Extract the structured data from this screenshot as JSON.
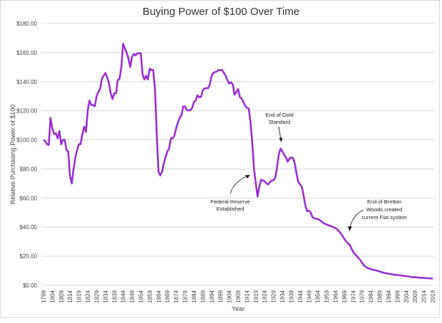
{
  "chart_data": {
    "type": "line",
    "title": "Buying Power of $100 Over Time",
    "xlabel": "Year",
    "ylabel": "Relative Purchasing Power of $100",
    "ylim": [
      0,
      180
    ],
    "xlim": [
      1799,
      2019
    ],
    "grid": "horizontal",
    "line_color": "#9b30d0",
    "y_ticks": [
      "$0.00",
      "$20.00",
      "$40.00",
      "$60.00",
      "$80.00",
      "$100.00",
      "$120.00",
      "$140.00",
      "$160.00",
      "$180.00"
    ],
    "x_ticks": [
      "1799",
      "1804",
      "1809",
      "1814",
      "1819",
      "1824",
      "1829",
      "1834",
      "1839",
      "1844",
      "1849",
      "1854",
      "1859",
      "1864",
      "1869",
      "1874",
      "1879",
      "1884",
      "1889",
      "1894",
      "1899",
      "1904",
      "1909",
      "1914",
      "1919",
      "1924",
      "1929",
      "1934",
      "1939",
      "1944",
      "1949",
      "1954",
      "1959",
      "1964",
      "1969",
      "1974",
      "1979",
      "1984",
      "1989",
      "1994",
      "1999",
      "2004",
      "2009",
      "2014",
      "2019"
    ],
    "x": [
      1799,
      1800,
      1801,
      1802,
      1803,
      1804,
      1805,
      1806,
      1807,
      1808,
      1809,
      1810,
      1811,
      1812,
      1813,
      1814,
      1815,
      1816,
      1817,
      1818,
      1819,
      1820,
      1821,
      1822,
      1823,
      1824,
      1825,
      1826,
      1827,
      1828,
      1829,
      1830,
      1831,
      1832,
      1833,
      1834,
      1835,
      1836,
      1837,
      1838,
      1839,
      1840,
      1841,
      1842,
      1843,
      1844,
      1845,
      1846,
      1847,
      1848,
      1849,
      1850,
      1851,
      1852,
      1853,
      1854,
      1855,
      1856,
      1857,
      1858,
      1859,
      1860,
      1861,
      1862,
      1863,
      1864,
      1865,
      1866,
      1867,
      1868,
      1869,
      1870,
      1871,
      1872,
      1873,
      1874,
      1875,
      1876,
      1877,
      1878,
      1879,
      1880,
      1881,
      1882,
      1883,
      1884,
      1885,
      1886,
      1887,
      1888,
      1889,
      1890,
      1891,
      1892,
      1893,
      1894,
      1895,
      1896,
      1897,
      1898,
      1899,
      1900,
      1901,
      1902,
      1903,
      1904,
      1905,
      1906,
      1907,
      1908,
      1909,
      1910,
      1911,
      1912,
      1913,
      1914,
      1915,
      1916,
      1917,
      1918,
      1919,
      1920,
      1921,
      1922,
      1923,
      1924,
      1925,
      1926,
      1927,
      1928,
      1929,
      1930,
      1931,
      1932,
      1933,
      1934,
      1935,
      1936,
      1937,
      1938,
      1939,
      1940,
      1941,
      1942,
      1943,
      1944,
      1945,
      1946,
      1947,
      1948,
      1949,
      1950,
      1951,
      1952,
      1953,
      1954,
      1955,
      1956,
      1957,
      1958,
      1959,
      1960,
      1961,
      1962,
      1963,
      1964,
      1965,
      1966,
      1967,
      1968,
      1969,
      1970,
      1971,
      1972,
      1973,
      1974,
      1975,
      1976,
      1977,
      1978,
      1979,
      1980,
      1981,
      1982,
      1983,
      1984,
      1985,
      1986,
      1987,
      1988,
      1989,
      1990,
      1991,
      1992,
      1993,
      1994,
      1995,
      1996,
      1997,
      1998,
      1999,
      2000,
      2001,
      2002,
      2003,
      2004,
      2005,
      2006,
      2007,
      2008,
      2009,
      2010,
      2011,
      2012,
      2013,
      2014,
      2015,
      2016,
      2017,
      2018,
      2019
    ],
    "values": [
      100,
      99,
      97,
      96.5,
      115,
      108,
      104,
      104.5,
      101,
      106,
      97,
      100,
      100,
      93,
      92,
      75,
      70,
      80,
      88,
      93,
      97,
      97,
      104,
      109,
      105.5,
      120,
      127,
      124,
      124,
      123,
      130,
      133,
      135,
      142,
      144,
      146,
      143,
      139,
      132,
      128,
      132,
      132,
      141,
      142,
      150,
      166,
      163,
      160,
      156,
      150,
      157,
      159,
      158,
      159.5,
      159.5,
      159.5,
      145,
      141.5,
      144,
      141.5,
      149,
      148,
      148,
      135,
      105,
      78,
      75.5,
      78,
      84,
      88,
      92,
      94,
      101,
      101,
      103,
      108,
      112,
      115,
      117,
      123,
      123,
      120.5,
      120.3,
      120.3,
      122,
      126,
      127,
      130.6,
      129.3,
      129.5,
      133.8,
      135.3,
      135.5,
      135.5,
      138,
      144,
      146,
      146.7,
      147,
      148,
      148,
      148,
      146,
      144,
      141,
      138.7,
      139.6,
      138,
      131,
      132.8,
      135,
      129.3,
      128.4,
      126,
      123.5,
      122,
      121.5,
      112,
      98,
      80,
      70,
      61,
      68,
      72.6,
      72,
      71.5,
      70,
      69.3,
      71,
      72,
      72.3,
      74,
      81,
      90,
      94,
      92,
      90,
      88,
      85,
      87,
      88,
      87.5,
      84,
      77,
      71,
      69.5,
      67.7,
      62,
      55,
      51,
      51.2,
      50,
      47,
      46,
      45.8,
      45.5,
      45,
      44,
      43,
      42.3,
      41.8,
      41.3,
      41,
      40.4,
      39.8,
      39.3,
      38.5,
      37.3,
      35.6,
      34,
      32,
      30.2,
      29,
      28,
      25.5,
      23,
      21.5,
      20.2,
      18.8,
      17.5,
      15.5,
      13.8,
      12.7,
      12,
      11.5,
      11.1,
      10.8,
      10.5,
      10.2,
      9.9,
      9.5,
      9.1,
      8.7,
      8.4,
      8.2,
      8,
      7.8,
      7.5,
      7.3,
      7.2,
      7.1,
      6.9,
      6.8,
      6.6,
      6.5,
      6.3,
      6.1,
      5.9,
      5.7,
      5.5,
      5.6,
      5.5,
      5.3,
      5.2,
      5.1,
      5.1,
      5.0,
      4.9,
      4.8,
      4.7,
      4.6
    ],
    "annotations": [
      {
        "lines": [
          "Federal Reserve",
          "Established"
        ],
        "target_year": 1918
      },
      {
        "lines": [
          "End of Gold",
          "Standard"
        ],
        "target_year": 1933
      },
      {
        "lines": [
          "End of Bretton",
          "Woods created",
          "current Fiat system"
        ],
        "target_year": 1971
      }
    ]
  }
}
